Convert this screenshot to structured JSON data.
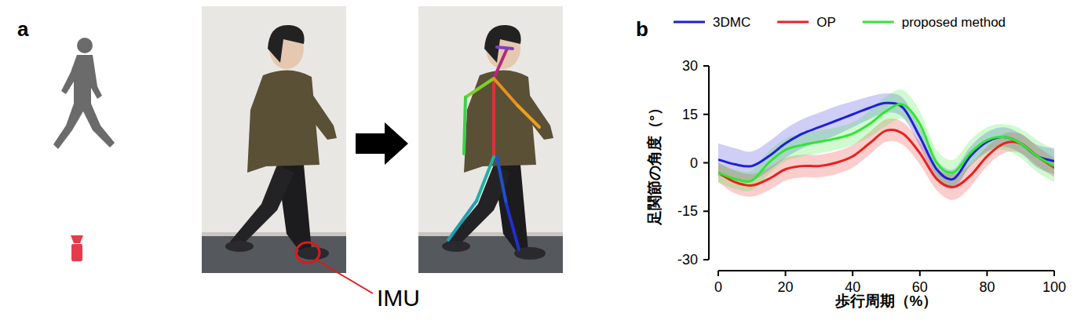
{
  "figure": {
    "panel_labels": [
      "a",
      "b"
    ],
    "imu_label": "IMU"
  },
  "chart_data": {
    "type": "line",
    "x_label": "歩行周期（%）",
    "y_label": "足関節の角度（°）",
    "x": [
      0,
      5,
      10,
      15,
      20,
      25,
      30,
      35,
      40,
      45,
      50,
      55,
      60,
      65,
      70,
      75,
      80,
      85,
      90,
      95,
      100
    ],
    "xlim": [
      0,
      100
    ],
    "xticks": [
      0,
      20,
      40,
      60,
      80,
      100
    ],
    "ylim": [
      -30,
      30
    ],
    "yticks": [
      -30,
      -15,
      0,
      15,
      30
    ],
    "legend": "top",
    "grid": false,
    "series": [
      {
        "name": "3DMC",
        "color": "#1f1fd6",
        "values": [
          1,
          -0.5,
          -1,
          2,
          6,
          9,
          11,
          13,
          15,
          17,
          18.5,
          17,
          8,
          -2,
          -5,
          2,
          6.5,
          8,
          6,
          2,
          0.5
        ],
        "sd": [
          5,
          5,
          4.5,
          4.5,
          4.5,
          4.5,
          4.5,
          4.5,
          4,
          3.5,
          3,
          3,
          3,
          3,
          3,
          3,
          3,
          3,
          3,
          3.5,
          4
        ]
      },
      {
        "name": "OP",
        "color": "#e8211d",
        "values": [
          -3,
          -6,
          -7,
          -5,
          -2,
          -1,
          -1,
          0,
          2,
          6,
          10,
          9,
          3,
          -5,
          -7.5,
          -4,
          2,
          6,
          6,
          2,
          -1.5
        ],
        "sd": [
          3,
          3.5,
          3.5,
          3.5,
          3.5,
          3.5,
          3.5,
          3.5,
          3.5,
          3.5,
          3.5,
          3.5,
          3.5,
          3.5,
          4,
          3.5,
          3,
          3,
          3,
          3,
          3
        ]
      },
      {
        "name": "proposed method",
        "color": "#2ee82e",
        "values": [
          -3,
          -5,
          -5.5,
          0,
          4,
          5.5,
          6.5,
          7.5,
          9,
          12,
          16,
          18,
          12,
          0,
          -3,
          3,
          7,
          8,
          6,
          2,
          -1
        ],
        "sd": [
          3,
          3,
          3,
          3.5,
          3.5,
          3.5,
          3.5,
          3.5,
          3.5,
          4,
          4.5,
          4.5,
          4,
          4,
          4,
          4,
          4,
          4,
          4.5,
          5,
          5
        ]
      }
    ]
  }
}
